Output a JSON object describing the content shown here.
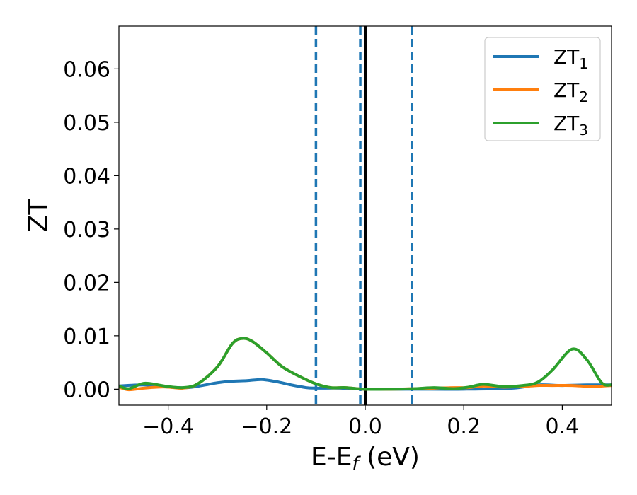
{
  "chart_data": {
    "type": "line",
    "title": "",
    "xlabel": {
      "base": "E-E",
      "sub": "f",
      "suffix": " (eV)"
    },
    "ylabel": "ZT",
    "xlim": [
      -0.5,
      0.5
    ],
    "ylim": [
      -0.003,
      0.068
    ],
    "grid": false,
    "legend_position": "top-right",
    "x_ticks": [
      {
        "value": -0.4,
        "label": "−0.4"
      },
      {
        "value": -0.2,
        "label": "−0.2"
      },
      {
        "value": 0.0,
        "label": "0.0"
      },
      {
        "value": 0.2,
        "label": "0.2"
      },
      {
        "value": 0.4,
        "label": "0.4"
      }
    ],
    "y_ticks": [
      {
        "value": 0.0,
        "label": "0.00"
      },
      {
        "value": 0.01,
        "label": "0.01"
      },
      {
        "value": 0.02,
        "label": "0.02"
      },
      {
        "value": 0.03,
        "label": "0.03"
      },
      {
        "value": 0.04,
        "label": "0.04"
      },
      {
        "value": 0.05,
        "label": "0.05"
      },
      {
        "value": 0.06,
        "label": "0.06"
      }
    ],
    "vertical_lines": [
      {
        "x": -0.1,
        "style": "dashed",
        "color": "#1f77b4"
      },
      {
        "x": -0.01,
        "style": "dashed",
        "color": "#1f77b4"
      },
      {
        "x": 0.0,
        "style": "solid",
        "color": "#000000"
      },
      {
        "x": 0.095,
        "style": "dashed",
        "color": "#1f77b4"
      }
    ],
    "series": [
      {
        "name": "ZT",
        "sub": "1",
        "color": "#1f77b4",
        "x": [
          -0.5,
          -0.45,
          -0.4,
          -0.36,
          -0.33,
          -0.3,
          -0.27,
          -0.24,
          -0.21,
          -0.18,
          -0.15,
          -0.12,
          -0.1,
          -0.05,
          0.0,
          0.1,
          0.2,
          0.3,
          0.35,
          0.4,
          0.45,
          0.5
        ],
        "y": [
          0.0006,
          0.0008,
          0.0004,
          0.0003,
          0.0007,
          0.0012,
          0.0015,
          0.0016,
          0.0018,
          0.0014,
          0.0008,
          0.0003,
          0.0002,
          0.0002,
          0.0,
          0.0,
          0.0,
          0.0002,
          0.0008,
          0.0007,
          0.0008,
          0.0008
        ]
      },
      {
        "name": "ZT",
        "sub": "2",
        "color": "#ff7f0e",
        "x": [
          -0.5,
          -0.48,
          -0.45,
          -0.42,
          -0.4,
          -0.37,
          -0.34,
          -0.3,
          -0.27,
          -0.25,
          -0.23,
          -0.2,
          -0.17,
          -0.14,
          -0.1,
          -0.07,
          -0.04,
          0.0,
          0.05,
          0.1,
          0.14,
          0.18,
          0.21,
          0.24,
          0.28,
          0.32,
          0.35,
          0.38,
          0.42,
          0.46,
          0.5
        ],
        "y": [
          0.0004,
          -0.0001,
          0.0002,
          0.0004,
          0.0004,
          0.0002,
          0.001,
          0.0042,
          0.0085,
          0.0095,
          0.009,
          0.0068,
          0.0043,
          0.0027,
          0.001,
          0.0003,
          0.0003,
          0.0,
          0.0,
          0.0001,
          0.0002,
          0.0003,
          0.0003,
          0.0006,
          0.0004,
          0.0005,
          0.0007,
          0.0007,
          0.0007,
          0.0005,
          0.0007
        ]
      },
      {
        "name": "ZT",
        "sub": "3",
        "color": "#2ca02c",
        "x": [
          -0.5,
          -0.48,
          -0.45,
          -0.42,
          -0.4,
          -0.37,
          -0.34,
          -0.3,
          -0.27,
          -0.25,
          -0.23,
          -0.2,
          -0.17,
          -0.14,
          -0.1,
          -0.07,
          -0.04,
          0.0,
          0.05,
          0.1,
          0.14,
          0.18,
          0.21,
          0.24,
          0.28,
          0.32,
          0.35,
          0.38,
          0.42,
          0.45,
          0.48,
          0.5
        ],
        "y": [
          0.0006,
          0.0001,
          0.0011,
          0.0008,
          0.0005,
          0.0003,
          0.001,
          0.0042,
          0.0085,
          0.0095,
          0.009,
          0.0068,
          0.0043,
          0.0027,
          0.001,
          0.0003,
          0.0003,
          0.0,
          0.0,
          0.0001,
          0.0003,
          0.0001,
          0.0004,
          0.0009,
          0.0005,
          0.0007,
          0.0013,
          0.0036,
          0.0075,
          0.0055,
          0.0012,
          0.0008
        ]
      }
    ]
  }
}
